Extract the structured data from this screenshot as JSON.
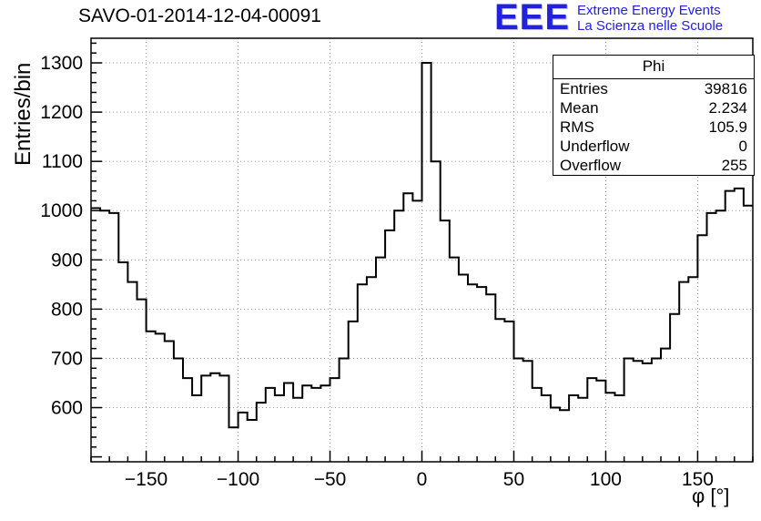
{
  "title": "SAVO-01-2014-12-04-00091",
  "logo": {
    "text": "EEE",
    "line1": "Extreme Energy Events",
    "line2": "La Scienza nelle Scuole",
    "color": "#2222dd"
  },
  "stats": {
    "title": "Phi",
    "rows": [
      {
        "label": "Entries",
        "value": "39816"
      },
      {
        "label": "Mean",
        "value": "2.234"
      },
      {
        "label": "RMS",
        "value": "105.9"
      },
      {
        "label": "Underflow",
        "value": "0"
      },
      {
        "label": "Overflow",
        "value": "255"
      }
    ]
  },
  "chart_data": {
    "type": "bar",
    "style": "step-histogram",
    "title": "SAVO-01-2014-12-04-00091",
    "xlabel": "φ [°]",
    "ylabel": "Entries/bin",
    "xlim": [
      -180,
      180
    ],
    "ylim": [
      490,
      1350
    ],
    "bin_start": -180,
    "bin_width": 5,
    "values": [
      1005,
      1000,
      995,
      895,
      855,
      820,
      755,
      750,
      735,
      700,
      660,
      625,
      665,
      670,
      665,
      560,
      590,
      575,
      610,
      640,
      625,
      650,
      620,
      645,
      640,
      645,
      660,
      700,
      775,
      850,
      865,
      905,
      960,
      1000,
      1035,
      1020,
      1300,
      1100,
      980,
      905,
      870,
      850,
      845,
      830,
      780,
      775,
      700,
      695,
      640,
      625,
      600,
      595,
      625,
      620,
      660,
      655,
      630,
      625,
      700,
      695,
      690,
      700,
      720,
      790,
      855,
      865,
      950,
      995,
      1000,
      1040,
      1045,
      1010
    ],
    "x_ticks": [
      -150,
      -100,
      -50,
      0,
      50,
      100,
      150
    ],
    "y_ticks": [
      600,
      700,
      800,
      900,
      1000,
      1100,
      1200,
      1300
    ],
    "x_minor_step": 10,
    "y_minor_step": 20,
    "grid": true,
    "line_color": "#000000",
    "grid_color": "#999999",
    "legend_position": "none"
  }
}
